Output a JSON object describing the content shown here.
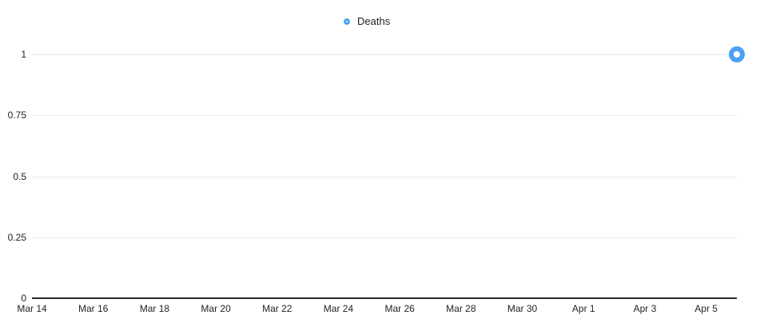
{
  "legend": {
    "position": "top-center",
    "items": [
      {
        "label": "Deaths",
        "marker": "open-circle",
        "color": "#4BA1F2"
      }
    ]
  },
  "chart_data": {
    "type": "scatter",
    "title": "",
    "xlabel": "",
    "ylabel": "",
    "grid": "horizontal-only",
    "legend_position": "top-center",
    "x_axis": {
      "tick_labels": [
        "Mar 14",
        "Mar 16",
        "Mar 18",
        "Mar 20",
        "Mar 22",
        "Mar 24",
        "Mar 26",
        "Mar 28",
        "Mar 30",
        "Apr 1",
        "Apr 3",
        "Apr 5"
      ],
      "tick_day_offsets": [
        0,
        2,
        4,
        6,
        8,
        10,
        12,
        14,
        16,
        18,
        20,
        22
      ],
      "range_labels": [
        "Mar 14",
        "Apr 6"
      ],
      "total_days": 23
    },
    "y_axis": {
      "tick_labels": [
        "0",
        "0.25",
        "0.5",
        "0.75",
        "1"
      ],
      "tick_values": [
        0,
        0.25,
        0.5,
        0.75,
        1
      ],
      "range": [
        0,
        1
      ]
    },
    "series": [
      {
        "name": "Deaths",
        "color": "#4BA1F2",
        "marker": "open-circle",
        "points": [
          {
            "x_label": "Apr 6",
            "day_offset": 23,
            "y": 1
          }
        ]
      }
    ]
  },
  "colors": {
    "background": "#ffffff",
    "gridline": "#e9e9e9",
    "axis_line": "#2b2b2b",
    "text": "#222222",
    "series_blue": "#4BA1F2",
    "point_fill": "#ffffff"
  }
}
